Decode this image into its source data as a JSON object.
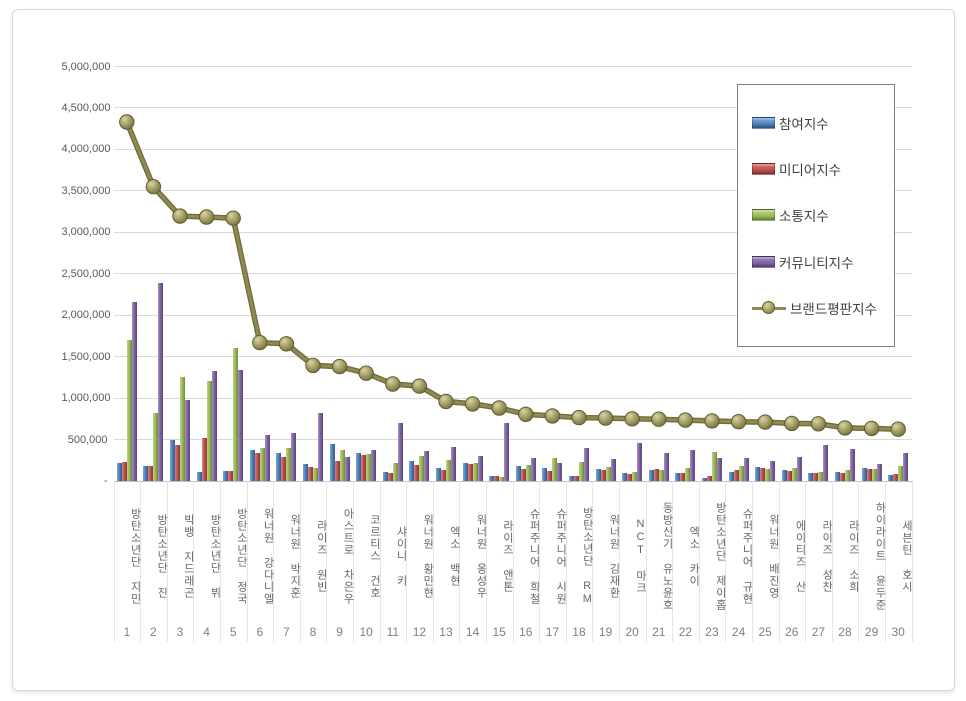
{
  "chart_data": {
    "type": "bar",
    "title": "",
    "xlabel": "",
    "ylabel": "",
    "ylim": [
      0,
      5000000
    ],
    "ytick_step": 500000,
    "ytick_labels": [
      "-",
      "500,000",
      "1,000,000",
      "1,500,000",
      "2,000,000",
      "2,500,000",
      "3,000,000",
      "3,500,000",
      "4,000,000",
      "4,500,000",
      "5,000,000"
    ],
    "grid": true,
    "legend_position": "top-right",
    "categories": [
      "방탄소년단 지민",
      "방탄소년단 진",
      "빅뱅 지드래곤",
      "방탄소년단 뷔",
      "방탄소년단 정국",
      "워너원 강다니엘",
      "워너원 박지훈",
      "라이즈 원빈",
      "아스트로 차은우",
      "코르티스 건호",
      "샤이니 키",
      "워너원 황민현",
      "엑소 백현",
      "워너원 옹성우",
      "라이즈 앤톤",
      "슈퍼주니어 희철",
      "슈퍼주니어 시원",
      "방탄소년단 RM",
      "워너원 김재환",
      "NCT 마크",
      "동방신기 유노윤호",
      "엑소 카이",
      "방탄소년단 제이홉",
      "슈퍼주니어 규현",
      "워너원 배진영",
      "에이티즈 산",
      "라이즈 성찬",
      "라이즈 소희",
      "하이라이트 윤두준",
      "세븐틴 호시"
    ],
    "ranks": [
      "1",
      "2",
      "3",
      "4",
      "5",
      "6",
      "7",
      "8",
      "9",
      "10",
      "11",
      "12",
      "13",
      "14",
      "15",
      "16",
      "17",
      "18",
      "19",
      "20",
      "21",
      "22",
      "23",
      "24",
      "25",
      "26",
      "27",
      "28",
      "29",
      "30"
    ],
    "series": [
      {
        "name": "참여지수",
        "type": "bar",
        "color": "#4f81bd",
        "values": [
          220000,
          185000,
          500000,
          110000,
          120000,
          375000,
          340000,
          205000,
          445000,
          335000,
          110000,
          240000,
          155000,
          220000,
          60000,
          175000,
          160000,
          60000,
          145000,
          95000,
          135000,
          95000,
          40000,
          110000,
          165000,
          135000,
          95000,
          110000,
          155000,
          75000
        ]
      },
      {
        "name": "미디어지수",
        "type": "bar",
        "color": "#c0504d",
        "values": [
          230000,
          180000,
          440000,
          515000,
          125000,
          340000,
          295000,
          165000,
          240000,
          315000,
          100000,
          195000,
          135000,
          205000,
          55000,
          140000,
          125000,
          55000,
          135000,
          80000,
          140000,
          100000,
          60000,
          135000,
          155000,
          120000,
          95000,
          95000,
          145000,
          80000
        ]
      },
      {
        "name": "소통지수",
        "type": "bar",
        "color": "#9bbb59",
        "values": [
          1700000,
          815000,
          1255000,
          1210000,
          1600000,
          395000,
          400000,
          155000,
          375000,
          325000,
          215000,
          305000,
          255000,
          220000,
          45000,
          195000,
          280000,
          235000,
          165000,
          110000,
          135000,
          155000,
          355000,
          180000,
          140000,
          155000,
          110000,
          130000,
          140000,
          175000
        ]
      },
      {
        "name": "커뮤니티지수",
        "type": "bar",
        "color": "#8064a2",
        "values": [
          2160000,
          2390000,
          980000,
          1330000,
          1340000,
          560000,
          585000,
          825000,
          290000,
          375000,
          695000,
          360000,
          405000,
          305000,
          695000,
          280000,
          220000,
          395000,
          260000,
          460000,
          335000,
          375000,
          275000,
          280000,
          240000,
          295000,
          435000,
          385000,
          205000,
          335000
        ]
      },
      {
        "name": "브랜드평판지수",
        "type": "line",
        "color": "#8e8a52",
        "marker_fill": "#a29d63",
        "marker_edge": "#5e5b2d",
        "values": [
          4330000,
          3550000,
          3195000,
          3185000,
          3170000,
          1670000,
          1655000,
          1395000,
          1380000,
          1300000,
          1170000,
          1145000,
          960000,
          930000,
          880000,
          805000,
          785000,
          765000,
          760000,
          750000,
          745000,
          735000,
          725000,
          715000,
          710000,
          695000,
          690000,
          640000,
          635000,
          625000
        ]
      }
    ]
  }
}
